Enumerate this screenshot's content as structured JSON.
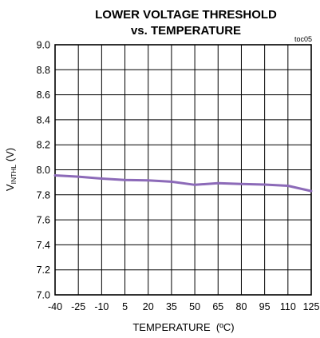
{
  "chart_data": {
    "type": "line",
    "title_line1": "LOWER VOLTAGE THRESHOLD",
    "title_line2": "vs. TEMPERATURE",
    "tag": "toc05",
    "ylabel_main": "V",
    "ylabel_sub": "INTHL",
    "ylabel_unit": " (V)",
    "xlabel": "TEMPERATURE  (ºC)",
    "xlim": [
      -40,
      125
    ],
    "ylim": [
      7.0,
      9.0
    ],
    "xticks": [
      -40,
      -25,
      -10,
      5,
      20,
      35,
      50,
      65,
      80,
      95,
      110,
      125
    ],
    "xtick_labels": [
      "-40",
      "-25",
      "-10",
      "5",
      "20",
      "35",
      "50",
      "65",
      "80",
      "95",
      "110",
      "125"
    ],
    "yticks": [
      7.0,
      7.2,
      7.4,
      7.6,
      7.8,
      8.0,
      8.2,
      8.4,
      8.6,
      8.8,
      9.0
    ],
    "ytick_labels": [
      "7.0",
      "7.2",
      "7.4",
      "7.6",
      "7.8",
      "8.0",
      "8.2",
      "8.4",
      "8.6",
      "8.8",
      "9.0"
    ],
    "grid": true,
    "series": [
      {
        "color": "#8c6ab8",
        "x": [
          -40,
          -25,
          -10,
          5,
          20,
          35,
          50,
          65,
          80,
          95,
          110,
          125
        ],
        "y": [
          7.955,
          7.945,
          7.93,
          7.918,
          7.915,
          7.905,
          7.88,
          7.893,
          7.887,
          7.882,
          7.872,
          7.83
        ]
      }
    ]
  }
}
